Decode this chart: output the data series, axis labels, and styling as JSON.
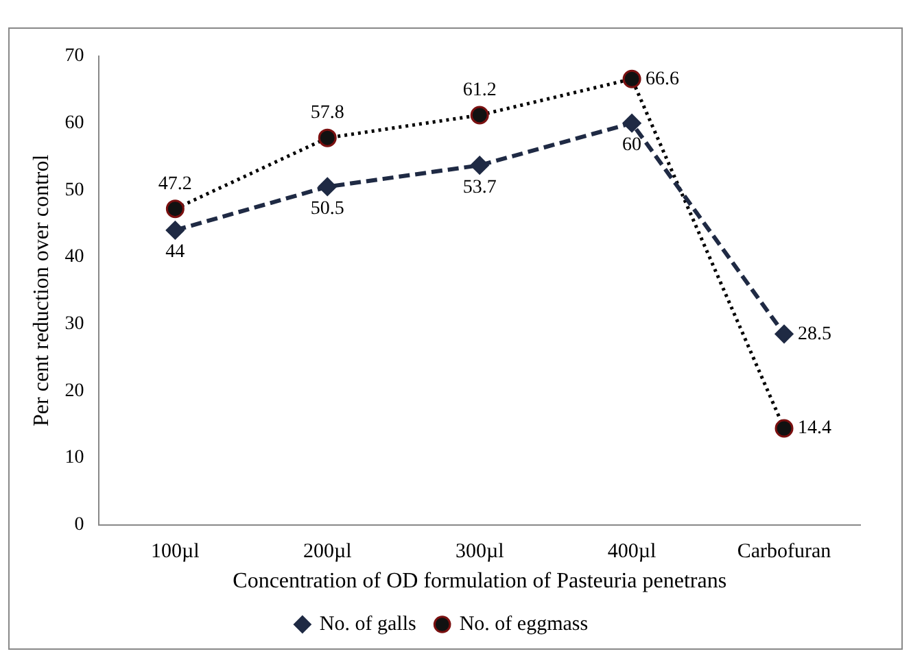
{
  "chart_data": {
    "type": "line",
    "xlabel": "Concentration of OD formulation of Pasteuria penetrans",
    "ylabel": "Per cent reduction over control",
    "categories": [
      "100µl",
      "200µl",
      "300µl",
      "400µl",
      "Carbofuran"
    ],
    "series": [
      {
        "name": "No. of galls",
        "color": "#1f2a44",
        "values": [
          44,
          50.5,
          53.7,
          60,
          28.5
        ],
        "marker": "diamond",
        "line_style": "dashed"
      },
      {
        "name": "No. of eggmass",
        "color": "#000000",
        "values": [
          47.2,
          57.8,
          61.2,
          66.6,
          14.4
        ],
        "marker": "circle",
        "line_style": "dotted"
      }
    ],
    "ylim": [
      0,
      70
    ],
    "yticks": [
      0,
      10,
      20,
      30,
      40,
      50,
      60,
      70
    ],
    "grid": false,
    "legend": "bottom",
    "data_labels": true
  }
}
